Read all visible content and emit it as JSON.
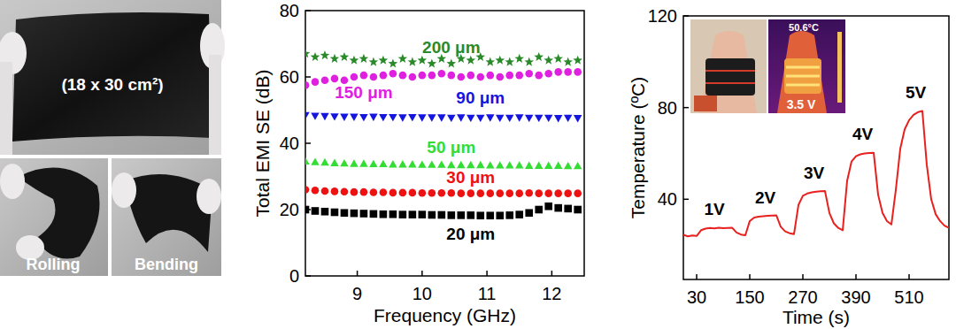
{
  "photos": {
    "main_label": "(18 x 30 cm²)",
    "panel_labels": [
      "Rolling",
      "Bending"
    ]
  },
  "inset": {
    "temperature_label": "50.6°C",
    "voltage_label": "3.5 V"
  },
  "chart_data": [
    {
      "type": "scatter",
      "x_label": "Frequency (GHz)",
      "y_label": "Total EMI SE (dB)",
      "xlim": [
        8.2,
        12.5
      ],
      "xticks": [
        9,
        10,
        11,
        12
      ],
      "ylim": [
        0,
        80
      ],
      "yticks": [
        0,
        20,
        40,
        60,
        80
      ],
      "grid": false,
      "x": [
        8.2,
        8.35,
        8.5,
        8.65,
        8.8,
        8.95,
        9.1,
        9.25,
        9.4,
        9.55,
        9.7,
        9.85,
        10,
        10.15,
        10.3,
        10.45,
        10.6,
        10.75,
        10.9,
        11.05,
        11.2,
        11.35,
        11.5,
        11.65,
        11.8,
        11.95,
        12.1,
        12.25,
        12.4
      ],
      "series": [
        {
          "name": "200 μm",
          "color": "#2a8a2a",
          "marker": "star",
          "values": [
            67,
            66,
            66.5,
            65.5,
            66,
            65,
            65.5,
            64.5,
            65,
            64,
            65.5,
            64.5,
            65,
            64,
            65.5,
            64,
            65.5,
            65,
            66,
            64.5,
            65,
            64.5,
            65.5,
            64.5,
            66,
            65,
            65.5,
            64.5,
            65
          ]
        },
        {
          "name": "150 μm",
          "color": "#e020e0",
          "marker": "circle",
          "values": [
            57.5,
            58.5,
            59,
            59.5,
            59,
            60,
            60.5,
            60,
            60.5,
            61,
            60.5,
            60,
            60.5,
            60.5,
            61,
            60.5,
            60,
            60.5,
            60,
            60.5,
            60,
            60.5,
            60.5,
            61,
            60.5,
            61,
            61.5,
            61.5,
            61.5
          ]
        },
        {
          "name": "90 μm",
          "color": "#1515e0",
          "marker": "triangle-down",
          "values": [
            48.5,
            48.3,
            48.2,
            48.1,
            48,
            48,
            47.9,
            48,
            47.9,
            47.9,
            47.8,
            47.9,
            47.8,
            47.8,
            47.8,
            47.7,
            47.8,
            47.7,
            47.7,
            47.8,
            47.7,
            47.7,
            47.8,
            47.7,
            47.7,
            47.7,
            47.6,
            47.7,
            47.6
          ]
        },
        {
          "name": "50 μm",
          "color": "#33dd33",
          "marker": "triangle-up",
          "values": [
            34.5,
            34.3,
            34.2,
            34,
            33.9,
            33.8,
            33.8,
            33.7,
            33.7,
            33.6,
            33.6,
            33.6,
            33.5,
            33.5,
            33.5,
            33.4,
            33.4,
            33.4,
            33.4,
            33.3,
            33.3,
            33.3,
            33.3,
            33.2,
            33.2,
            33.2,
            33.2,
            33.1,
            33.1
          ]
        },
        {
          "name": "30 μm",
          "color": "#ee1111",
          "marker": "circle",
          "values": [
            26,
            25.8,
            25.6,
            25.5,
            25.4,
            25.3,
            25.3,
            25.2,
            25.2,
            25.1,
            25.1,
            25.1,
            25,
            25,
            25,
            25,
            24.9,
            24.9,
            24.9,
            24.9,
            24.9,
            24.9,
            24.9,
            25,
            24.9,
            24.9,
            24.9,
            24.9,
            24.9
          ]
        },
        {
          "name": "20 μm",
          "color": "#000000",
          "marker": "square",
          "values": [
            20,
            19.6,
            19.4,
            19.2,
            19,
            18.9,
            18.8,
            18.7,
            18.6,
            18.6,
            18.5,
            18.5,
            18.5,
            18.4,
            18.4,
            18.3,
            18.3,
            18.3,
            18.2,
            18.2,
            18.2,
            18.3,
            18.5,
            19,
            20,
            21,
            20.5,
            20.3,
            20
          ]
        }
      ]
    },
    {
      "type": "line",
      "x_label": "Time (s)",
      "y_label": "Temperature (ºC)",
      "xlim": [
        0,
        600
      ],
      "xticks": [
        30,
        150,
        270,
        390,
        510
      ],
      "ylim": [
        5,
        120
      ],
      "yticks": [
        40,
        80,
        120
      ],
      "grid": false,
      "color": "#e8201e",
      "x": [
        0,
        10,
        20,
        30,
        40,
        50,
        60,
        70,
        80,
        90,
        100,
        110,
        120,
        130,
        140,
        150,
        160,
        170,
        180,
        190,
        200,
        210,
        220,
        230,
        240,
        250,
        260,
        270,
        280,
        290,
        300,
        310,
        320,
        330,
        340,
        350,
        360,
        370,
        380,
        390,
        400,
        410,
        420,
        430,
        440,
        450,
        460,
        470,
        480,
        490,
        500,
        510,
        520,
        530,
        540,
        550,
        560,
        570,
        580,
        590,
        600
      ],
      "values": [
        24.5,
        23.8,
        24.2,
        24.0,
        26.5,
        27.2,
        27.5,
        27.3,
        27.6,
        27.4,
        27.5,
        27.6,
        25.5,
        24.6,
        24.3,
        30.5,
        32.0,
        32.4,
        32.6,
        32.8,
        32.9,
        33.0,
        28.0,
        26.0,
        25.2,
        24.8,
        37.5,
        41.5,
        42.5,
        43.0,
        43.3,
        43.5,
        43.6,
        34.0,
        29.5,
        27.5,
        26.5,
        48.0,
        56.5,
        58.8,
        59.6,
        60.0,
        60.2,
        60.3,
        42.0,
        34.0,
        30.5,
        29.0,
        44.0,
        62.0,
        70.5,
        74.5,
        76.8,
        78.0,
        78.5,
        55.0,
        40.0,
        33.5,
        30.5,
        28.5,
        27.5
      ],
      "annotations": [
        {
          "text": "1V",
          "x": 70,
          "y": 33
        },
        {
          "text": "2V",
          "x": 185,
          "y": 38
        },
        {
          "text": "3V",
          "x": 295,
          "y": 49
        },
        {
          "text": "4V",
          "x": 405,
          "y": 66
        },
        {
          "text": "5V",
          "x": 525,
          "y": 84
        }
      ]
    }
  ]
}
